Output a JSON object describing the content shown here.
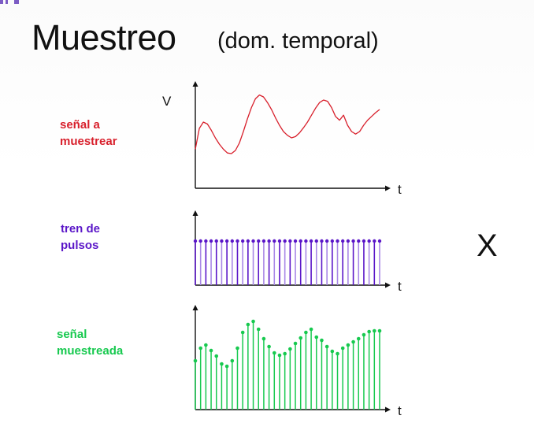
{
  "slide": {
    "title": "Muestreo",
    "subtitle": "(dom. temporal)",
    "operator": "X"
  },
  "labels": {
    "signal": [
      "señal a",
      "muestrear"
    ],
    "pulses": [
      "tren de",
      "pulsos"
    ],
    "sampled": [
      "señal",
      "muestreada"
    ]
  },
  "axes": {
    "v_label": "V",
    "t_label": "t"
  },
  "colors": {
    "signal": "#d8202c",
    "pulses_dark": "#5a16c8",
    "pulses_light": "#a887e6",
    "sampled": "#17c94f",
    "axis": "#111111"
  },
  "chart_data": [
    {
      "type": "line",
      "x": [
        0,
        1,
        2,
        3,
        4,
        5,
        6,
        7,
        8,
        9,
        10,
        11,
        12,
        13,
        14,
        15,
        16,
        17,
        18,
        19,
        20,
        21,
        22,
        23,
        24,
        25,
        26,
        27,
        28,
        29,
        30,
        31,
        32,
        33,
        34,
        35,
        36,
        37,
        38,
        39,
        40,
        41,
        42,
        43,
        44,
        45,
        46
      ],
      "series": [
        {
          "values": [
            0.62,
            0.95,
            1.05,
            1.02,
            0.92,
            0.8,
            0.7,
            0.62,
            0.56,
            0.55,
            0.6,
            0.72,
            0.9,
            1.1,
            1.28,
            1.42,
            1.48,
            1.45,
            1.36,
            1.25,
            1.12,
            1.0,
            0.9,
            0.84,
            0.8,
            0.82,
            0.88,
            0.96,
            1.05,
            1.16,
            1.27,
            1.36,
            1.4,
            1.38,
            1.28,
            1.14,
            1.08,
            1.16,
            1.0,
            0.9,
            0.86,
            0.9,
            1.0,
            1.08,
            1.14,
            1.2,
            1.25
          ]
        }
      ],
      "ylabel": "V",
      "xlabel": "t"
    },
    {
      "type": "bar",
      "x": [
        0,
        1,
        2,
        3,
        4,
        5,
        6,
        7,
        8,
        9,
        10,
        11,
        12,
        13,
        14,
        15,
        16,
        17,
        18,
        19,
        20,
        21,
        22,
        23,
        24,
        25,
        26,
        27,
        28,
        29,
        30,
        31,
        32,
        33,
        34,
        35
      ],
      "series": [
        {
          "values": [
            1,
            1,
            1,
            1,
            1,
            1,
            1,
            1,
            1,
            1,
            1,
            1,
            1,
            1,
            1,
            1,
            1,
            1,
            1,
            1,
            1,
            1,
            1,
            1,
            1,
            1,
            1,
            1,
            1,
            1,
            1,
            1,
            1,
            1,
            1,
            1
          ]
        }
      ],
      "xlabel": "t"
    },
    {
      "type": "bar",
      "x": [
        0,
        1,
        2,
        3,
        4,
        5,
        6,
        7,
        8,
        9,
        10,
        11,
        12,
        13,
        14,
        15,
        16,
        17,
        18,
        19,
        20,
        21,
        22,
        23,
        24,
        25,
        26,
        27,
        28,
        29,
        30,
        31,
        32,
        33,
        34,
        35
      ],
      "series": [
        {
          "values": [
            0.62,
            0.78,
            0.82,
            0.75,
            0.68,
            0.58,
            0.55,
            0.62,
            0.78,
            0.98,
            1.08,
            1.12,
            1.02,
            0.9,
            0.8,
            0.72,
            0.69,
            0.71,
            0.77,
            0.84,
            0.91,
            0.98,
            1.02,
            0.92,
            0.88,
            0.8,
            0.74,
            0.71,
            0.78,
            0.82,
            0.86,
            0.9,
            0.95,
            0.99,
            1.0,
            1.0
          ]
        }
      ],
      "xlabel": "t"
    }
  ]
}
